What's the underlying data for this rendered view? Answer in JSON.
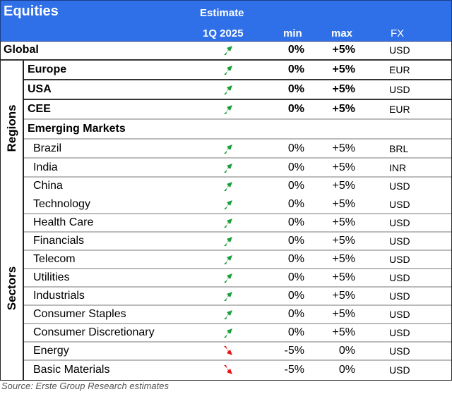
{
  "header": {
    "title": "Equities",
    "estimate": "Estimate",
    "period": "1Q 2025",
    "min": "min",
    "max": "max",
    "fx": "FX"
  },
  "colors": {
    "header_bg": "#2f6fe8",
    "up": "#1a9e3a",
    "down": "#e8141c"
  },
  "groups": {
    "regions": "Regions",
    "sectors": "Sectors"
  },
  "rows": [
    {
      "name": "Global",
      "trend": "up",
      "min": "0%",
      "max": "+5%",
      "fx": "USD",
      "bold": true
    },
    {
      "name": "Europe",
      "trend": "up",
      "min": "0%",
      "max": "+5%",
      "fx": "EUR",
      "bold": true
    },
    {
      "name": "USA",
      "trend": "up",
      "min": "0%",
      "max": "+5%",
      "fx": "USD",
      "bold": true
    },
    {
      "name": "CEE",
      "trend": "up",
      "min": "0%",
      "max": "+5%",
      "fx": "EUR",
      "bold": true
    },
    {
      "name": "Emerging Markets",
      "trend": "",
      "min": "",
      "max": "",
      "fx": "",
      "bold": true
    },
    {
      "name": "Brazil",
      "trend": "up",
      "min": "0%",
      "max": "+5%",
      "fx": "BRL"
    },
    {
      "name": "India",
      "trend": "up",
      "min": "0%",
      "max": "+5%",
      "fx": "INR"
    },
    {
      "name": "China",
      "trend": "up",
      "min": "0%",
      "max": "+5%",
      "fx": "USD"
    },
    {
      "name": "Technology",
      "trend": "up",
      "min": "0%",
      "max": "+5%",
      "fx": "USD"
    },
    {
      "name": "Health Care",
      "trend": "up",
      "min": "0%",
      "max": "+5%",
      "fx": "USD"
    },
    {
      "name": "Financials",
      "trend": "up",
      "min": "0%",
      "max": "+5%",
      "fx": "USD"
    },
    {
      "name": "Telecom",
      "trend": "up",
      "min": "0%",
      "max": "+5%",
      "fx": "USD"
    },
    {
      "name": "Utilities",
      "trend": "up",
      "min": "0%",
      "max": "+5%",
      "fx": "USD"
    },
    {
      "name": "Industrials",
      "trend": "up",
      "min": "0%",
      "max": "+5%",
      "fx": "USD"
    },
    {
      "name": "Consumer Staples",
      "trend": "up",
      "min": "0%",
      "max": "+5%",
      "fx": "USD"
    },
    {
      "name": "Consumer Discretionary",
      "trend": "up",
      "min": "0%",
      "max": "+5%",
      "fx": "USD"
    },
    {
      "name": "Energy",
      "trend": "down",
      "min": "-5%",
      "max": "0%",
      "fx": "USD"
    },
    {
      "name": "Basic Materials",
      "trend": "down",
      "min": "-5%",
      "max": "0%",
      "fx": "USD"
    }
  ],
  "source": "Source: Erste Group Research estimates"
}
